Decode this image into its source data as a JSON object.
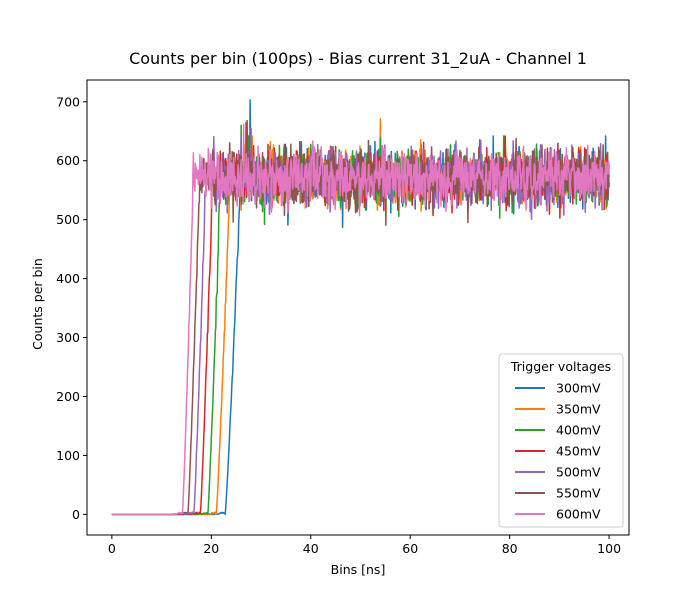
{
  "chart_data": {
    "type": "line",
    "title": "Counts per bin (100ps) - Bias current 31_2uA - Channel 1",
    "xlabel": "Bins [ns]",
    "ylabel": "Counts per bin",
    "xlim": [
      -5,
      104
    ],
    "ylim": [
      -35,
      737
    ],
    "xticks": [
      0,
      20,
      40,
      60,
      80,
      100
    ],
    "yticks": [
      0,
      100,
      200,
      300,
      400,
      500,
      600,
      700
    ],
    "grid": false,
    "legend_title": "Trigger voltages",
    "legend_position": "lower-right",
    "x_range": [
      0,
      100
    ],
    "plateau_mean": 572,
    "plateau_spread": 40,
    "series": [
      {
        "name": "300mV",
        "color": "#1f77b4",
        "rise_start_x": 22.8,
        "rise_end_x": 25.8,
        "peak_x": 27.8,
        "peak_y": 703
      },
      {
        "name": "350mV",
        "color": "#ff7f0e",
        "rise_start_x": 21.0,
        "rise_end_x": 23.7,
        "peak_x": 54.0,
        "peak_y": 671
      },
      {
        "name": "400mV",
        "color": "#2ca02c",
        "rise_start_x": 19.3,
        "rise_end_x": 21.8,
        "peak_x": 26.0,
        "peak_y": 660
      },
      {
        "name": "450mV",
        "color": "#d62728",
        "rise_start_x": 17.8,
        "rise_end_x": 20.2,
        "peak_x": 27.0,
        "peak_y": 665
      },
      {
        "name": "500mV",
        "color": "#9467bd",
        "rise_start_x": 16.5,
        "rise_end_x": 18.8,
        "peak_x": 28.0,
        "peak_y": 655
      },
      {
        "name": "550mV",
        "color": "#8c564b",
        "rise_start_x": 15.3,
        "rise_end_x": 17.6,
        "peak_x": 27.2,
        "peak_y": 668
      },
      {
        "name": "600mV",
        "color": "#e377c2",
        "rise_start_x": 14.2,
        "rise_end_x": 16.3,
        "peak_x": 26.5,
        "peak_y": 662
      }
    ]
  }
}
